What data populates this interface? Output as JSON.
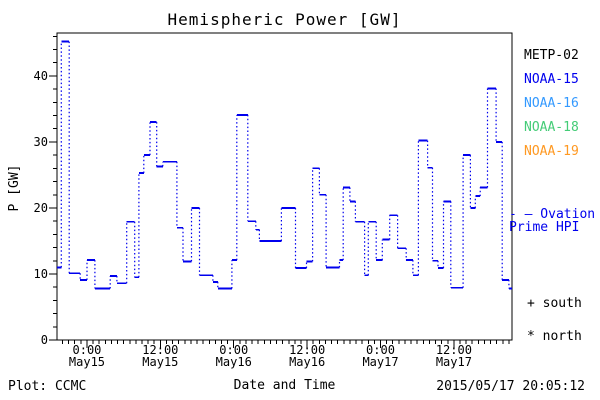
{
  "title": "Hemispheric Power [GW]",
  "footer": {
    "left": "Plot: CCMC",
    "right": "2015/05/17 20:05:12"
  },
  "axes": {
    "x_label": "Date and Time",
    "y_label": "P [GW]",
    "y_ticks": [
      0,
      10,
      20,
      30,
      40
    ],
    "y_minor_step": 2,
    "ylim": [
      0,
      46.5
    ],
    "xlim_hours": [
      -4.9,
      69.5
    ],
    "x_minor_step_hours": 1,
    "x_ticks": [
      {
        "hour": 0,
        "time": "0:00",
        "date": "May15"
      },
      {
        "hour": 12,
        "time": "12:00",
        "date": "May15"
      },
      {
        "hour": 24,
        "time": "0:00",
        "date": "May16"
      },
      {
        "hour": 36,
        "time": "12:00",
        "date": "May16"
      },
      {
        "hour": 48,
        "time": "0:00",
        "date": "May17"
      },
      {
        "hour": 60,
        "time": "12:00",
        "date": "May17"
      }
    ]
  },
  "legend": {
    "items": [
      {
        "label": "METP-02",
        "color": "#000000"
      },
      {
        "label": "NOAA-15",
        "color": "#0000ee"
      },
      {
        "label": "NOAA-16",
        "color": "#3399ff"
      },
      {
        "label": "NOAA-18",
        "color": "#44cc77"
      },
      {
        "label": "NOAA-19",
        "color": "#ff9922"
      }
    ]
  },
  "annotations": {
    "ovation_line1": "- — Ovation",
    "ovation_line2": "Prime HPI",
    "ovation_color": "#0000ee",
    "south": "+ south",
    "north": "* north"
  },
  "chart_data": {
    "type": "line",
    "subtype": "step-post",
    "title": "Hemispheric Power [GW]",
    "xlabel": "Date and Time",
    "ylabel": "P [GW]",
    "ylim": [
      0,
      46.5
    ],
    "x_unit": "hours from May15 0:00",
    "xlim": [
      -4.9,
      69.5
    ],
    "grid": false,
    "legend_position": "right",
    "line_color": "#0000ee",
    "line_style": "solid horizontal plateaus, dotted vertical connectors",
    "series": [
      {
        "name": "Ovation Prime HPI",
        "color": "#0000ee",
        "points": [
          [
            -4.9,
            11.0
          ],
          [
            -4.2,
            45.2
          ],
          [
            -2.9,
            10.1
          ],
          [
            -1.1,
            9.1
          ],
          [
            0.0,
            12.1
          ],
          [
            1.3,
            7.8
          ],
          [
            3.8,
            9.7
          ],
          [
            4.9,
            8.6
          ],
          [
            6.5,
            17.9
          ],
          [
            7.8,
            9.5
          ],
          [
            8.5,
            25.3
          ],
          [
            9.3,
            28.0
          ],
          [
            10.3,
            33.0
          ],
          [
            11.4,
            26.3
          ],
          [
            12.4,
            27.0
          ],
          [
            14.7,
            17.0
          ],
          [
            15.7,
            11.9
          ],
          [
            17.1,
            20.0
          ],
          [
            18.4,
            9.8
          ],
          [
            20.6,
            8.8
          ],
          [
            21.4,
            7.8
          ],
          [
            23.7,
            12.1
          ],
          [
            24.5,
            34.1
          ],
          [
            26.3,
            18.0
          ],
          [
            27.6,
            16.7
          ],
          [
            28.2,
            15.0
          ],
          [
            31.8,
            20.0
          ],
          [
            34.1,
            10.9
          ],
          [
            35.9,
            11.9
          ],
          [
            36.9,
            26.0
          ],
          [
            38.0,
            22.0
          ],
          [
            39.1,
            11.0
          ],
          [
            41.3,
            12.1
          ],
          [
            41.9,
            23.1
          ],
          [
            43.0,
            21.0
          ],
          [
            43.9,
            17.9
          ],
          [
            45.4,
            9.8
          ],
          [
            46.0,
            17.9
          ],
          [
            47.3,
            12.1
          ],
          [
            48.3,
            15.2
          ],
          [
            49.5,
            18.9
          ],
          [
            50.8,
            13.9
          ],
          [
            52.2,
            12.1
          ],
          [
            53.3,
            9.8
          ],
          [
            54.2,
            30.2
          ],
          [
            55.7,
            26.1
          ],
          [
            56.5,
            12.0
          ],
          [
            57.4,
            10.9
          ],
          [
            58.3,
            21.0
          ],
          [
            59.5,
            7.9
          ],
          [
            61.5,
            28.0
          ],
          [
            62.7,
            20.0
          ],
          [
            63.5,
            21.8
          ],
          [
            64.3,
            23.1
          ],
          [
            65.5,
            38.1
          ],
          [
            66.9,
            30.0
          ],
          [
            67.9,
            9.1
          ],
          [
            69.0,
            7.8
          ]
        ]
      }
    ]
  }
}
